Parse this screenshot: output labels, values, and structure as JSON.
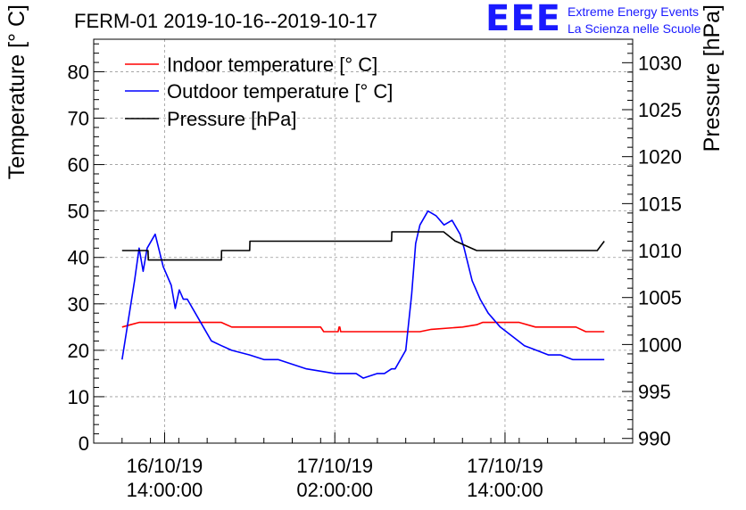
{
  "chart_data": {
    "type": "line",
    "title": "FERM-01 2019-10-16--2019-10-17",
    "ylabel_left": "Temperature [° C]",
    "ylabel_right": "Pressure [hPa]",
    "ylim_left": [
      0,
      87
    ],
    "ylim_right": [
      989.5,
      1032.5
    ],
    "left_ticks": [
      "0",
      "10",
      "20",
      "30",
      "40",
      "50",
      "60",
      "70",
      "80"
    ],
    "right_ticks": [
      "990",
      "995",
      "1000",
      "1005",
      "1010",
      "1015",
      "1020",
      "1025",
      "1030"
    ],
    "x_tick_labels": [
      {
        "date": "16/10/19",
        "time": "14:00:00"
      },
      {
        "date": "17/10/19",
        "time": "02:00:00"
      },
      {
        "date": "17/10/19",
        "time": "14:00:00"
      }
    ],
    "xlim": [
      "2019-10-16 09:00",
      "2019-10-17 23:00"
    ],
    "grid": true,
    "legend_position": "top-left",
    "series": [
      {
        "name": "Indoor temperature [° C]",
        "color": "#ff0000",
        "axis": "left",
        "x": [
          "2019-10-16 11:00",
          "2019-10-16 11:36",
          "2019-10-16 12:12",
          "2019-10-16 18:00",
          "2019-10-16 18:44",
          "2019-10-17 01:00",
          "2019-10-17 01:13",
          "2019-10-17 02:00",
          "2019-10-17 02:14",
          "2019-10-17 02:18",
          "2019-10-17 02:21",
          "2019-10-17 02:25",
          "2019-10-17 08:00",
          "2019-10-17 08:48",
          "2019-10-17 11:00",
          "2019-10-17 12:00",
          "2019-10-17 12:25",
          "2019-10-17 15:00",
          "2019-10-17 16:09",
          "2019-10-17 19:00",
          "2019-10-17 19:42",
          "2019-10-17 21:00"
        ],
        "y": [
          25,
          25.5,
          26,
          26,
          25,
          25,
          24,
          24,
          24,
          25,
          25,
          24,
          24,
          24.5,
          25,
          25.5,
          26,
          26,
          25,
          25,
          24,
          24
        ]
      },
      {
        "name": "Outdoor temperature [° C]",
        "color": "#0000ff",
        "axis": "left",
        "x": [
          "2019-10-16 11:00",
          "2019-10-16 11:53",
          "2019-10-16 12:12",
          "2019-10-16 12:29",
          "2019-10-16 12:46",
          "2019-10-16 13:20",
          "2019-10-16 13:54",
          "2019-10-16 14:28",
          "2019-10-16 14:45",
          "2019-10-16 15:02",
          "2019-10-16 15:19",
          "2019-10-16 15:36",
          "2019-10-16 16:10",
          "2019-10-16 16:44",
          "2019-10-16 17:18",
          "2019-10-16 18:00",
          "2019-10-16 18:44",
          "2019-10-16 20:00",
          "2019-10-16 21:00",
          "2019-10-16 22:00",
          "2019-10-16 23:00",
          "2019-10-17 00:00",
          "2019-10-17 02:00",
          "2019-10-17 03:30",
          "2019-10-17 04:00",
          "2019-10-17 05:00",
          "2019-10-17 05:30",
          "2019-10-17 06:00",
          "2019-10-17 06:15",
          "2019-10-17 07:00",
          "2019-10-17 07:25",
          "2019-10-17 07:42",
          "2019-10-17 08:00",
          "2019-10-17 08:34",
          "2019-10-17 09:08",
          "2019-10-17 09:42",
          "2019-10-17 10:16",
          "2019-10-17 10:50",
          "2019-10-17 11:07",
          "2019-10-17 11:41",
          "2019-10-17 12:15",
          "2019-10-17 12:49",
          "2019-10-17 13:40",
          "2019-10-17 14:31",
          "2019-10-17 15:22",
          "2019-10-17 16:13",
          "2019-10-17 17:04",
          "2019-10-17 17:55",
          "2019-10-17 18:46",
          "2019-10-17 19:37",
          "2019-10-17 20:28",
          "2019-10-17 21:00"
        ],
        "y": [
          18,
          35,
          42,
          37,
          42,
          45,
          38,
          34,
          29,
          33,
          31,
          31,
          28,
          25,
          22,
          21,
          20,
          19,
          18,
          18,
          17,
          16,
          15,
          15,
          14,
          15,
          15,
          16,
          16,
          20,
          32,
          43,
          47,
          50,
          49,
          47,
          48,
          45,
          42,
          35,
          31,
          28,
          25,
          23,
          21,
          20,
          19,
          19,
          18,
          18,
          18,
          18
        ]
      },
      {
        "name": "Pressure [hPa]",
        "color": "#000000",
        "axis": "right",
        "x": [
          "2019-10-16 11:00",
          "2019-10-16 12:50",
          "2019-10-16 12:51",
          "2019-10-16 18:00",
          "2019-10-16 18:01",
          "2019-10-16 20:00",
          "2019-10-16 20:01",
          "2019-10-17 06:00",
          "2019-10-17 06:01",
          "2019-10-17 09:40",
          "2019-10-17 10:30",
          "2019-10-17 10:31",
          "2019-10-17 12:00",
          "2019-10-17 12:01",
          "2019-10-17 20:30",
          "2019-10-17 21:00"
        ],
        "y": [
          1010,
          1010,
          1009,
          1009,
          1010,
          1010,
          1011,
          1011,
          1012,
          1012,
          1011,
          1011,
          1010,
          1010,
          1010,
          1011
        ]
      }
    ]
  },
  "logo": {
    "mark": "EEE",
    "line1": "Extreme Energy Events",
    "line2": "La Scienza nelle Scuole"
  }
}
